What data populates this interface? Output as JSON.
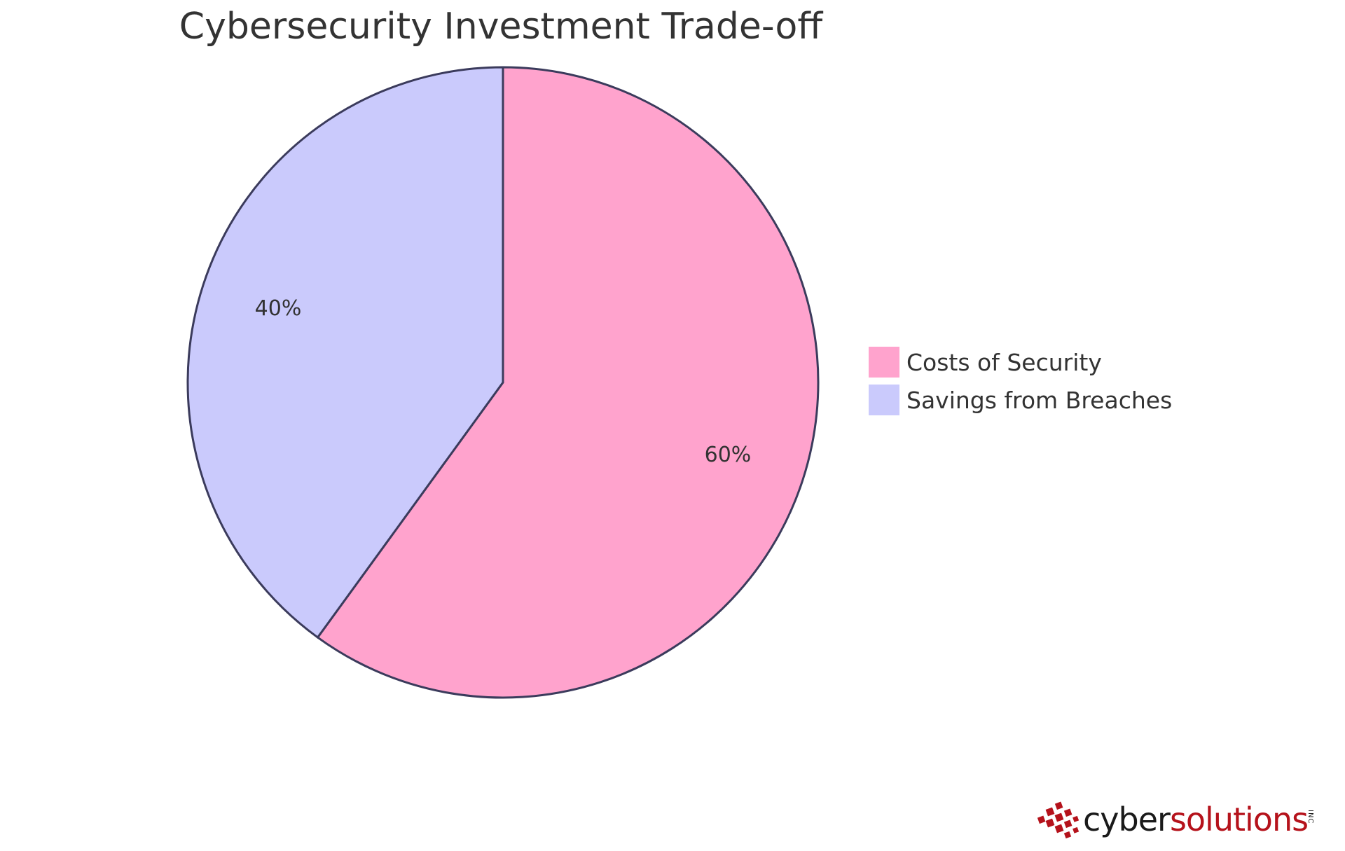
{
  "chart_data": {
    "type": "pie",
    "title": "Cybersecurity Investment Trade-off",
    "slices": [
      {
        "label": "Costs of Security",
        "value": 60,
        "display": "60%",
        "color": "#FFA3CD"
      },
      {
        "label": "Savings from Breaches",
        "value": 40,
        "display": "40%",
        "color": "#CACAFC"
      }
    ],
    "legend_position": "right",
    "stroke_color": "#3B3B5C"
  },
  "logo": {
    "word_dark": "cyber",
    "word_accent": "solutions",
    "suffix": "INC",
    "accent_color": "#B5121B"
  }
}
